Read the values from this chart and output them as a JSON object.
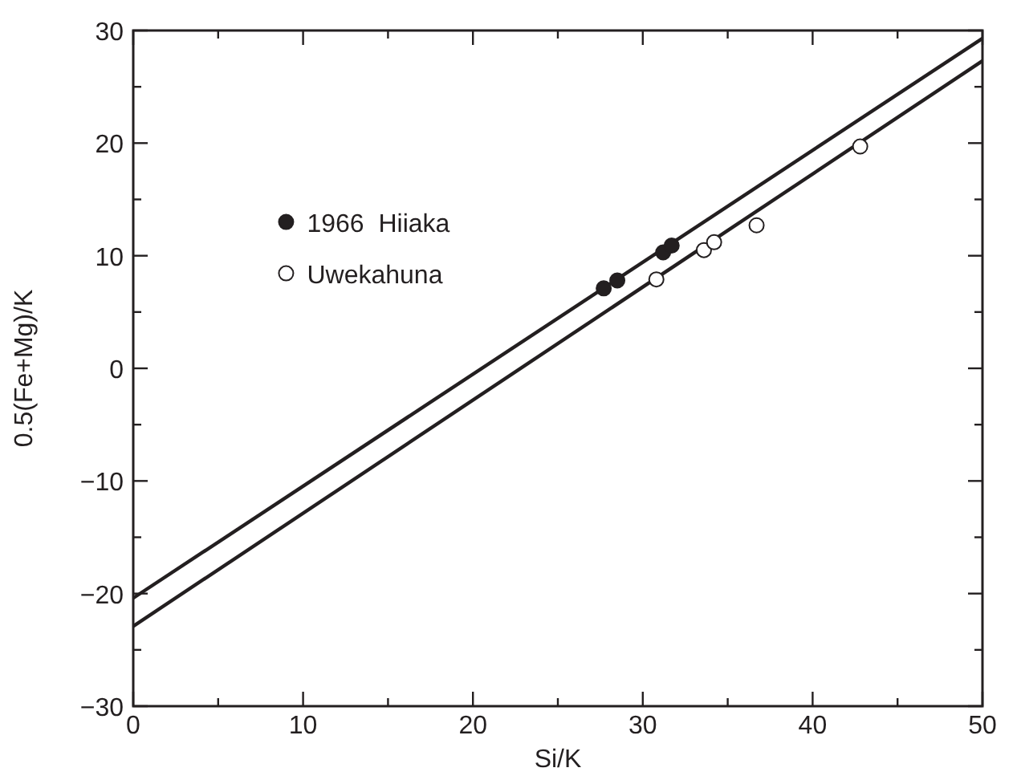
{
  "chart_data": {
    "type": "scatter",
    "xlabel": "Si/K",
    "ylabel": "0.5(Fe+Mg)/K",
    "xlim": [
      0,
      50
    ],
    "ylim": [
      -30,
      30
    ],
    "xticks": [
      0,
      {
        "value": 5,
        "label": null
      },
      10,
      {
        "value": 15,
        "label": null
      },
      20,
      {
        "value": 25,
        "label": null
      },
      30,
      {
        "value": 35,
        "label": null
      },
      40,
      {
        "value": 45,
        "label": null
      },
      50
    ],
    "yticks": [
      {
        "value": -30,
        "label": "−30"
      },
      {
        "value": -25,
        "label": null
      },
      {
        "value": -20,
        "label": "−20"
      },
      {
        "value": -15,
        "label": null
      },
      {
        "value": -10,
        "label": "−10"
      },
      {
        "value": -5,
        "label": null
      },
      0,
      {
        "value": 5,
        "label": null
      },
      10,
      {
        "value": 15,
        "label": null
      },
      20,
      {
        "value": 25,
        "label": null
      },
      30
    ],
    "grid": false,
    "legend": "top left",
    "series": [
      {
        "name": "1966  Hiiaka",
        "marker": "circle",
        "color": "#231f20",
        "x": [
          27.7,
          28.5,
          31.2,
          31.7
        ],
        "values": [
          7.1,
          7.8,
          10.3,
          10.9
        ]
      },
      {
        "name": "Uwekahuna",
        "marker": "circle",
        "color": "#ffffff",
        "x": [
          30.8,
          33.6,
          34.2,
          36.7,
          42.8
        ],
        "values": [
          7.9,
          10.5,
          11.2,
          12.7,
          19.7
        ]
      },
      {
        "type": "line",
        "color": "#231f20",
        "line_style": "solid",
        "marker": "none",
        "x": [
          0,
          50
        ],
        "values": [
          -20.4,
          29.3
        ]
      },
      {
        "type": "line",
        "color": "#231f20",
        "line_style": "solid",
        "marker": "none",
        "x": [
          0,
          50
        ],
        "values": [
          -22.9,
          27.3
        ]
      }
    ]
  }
}
